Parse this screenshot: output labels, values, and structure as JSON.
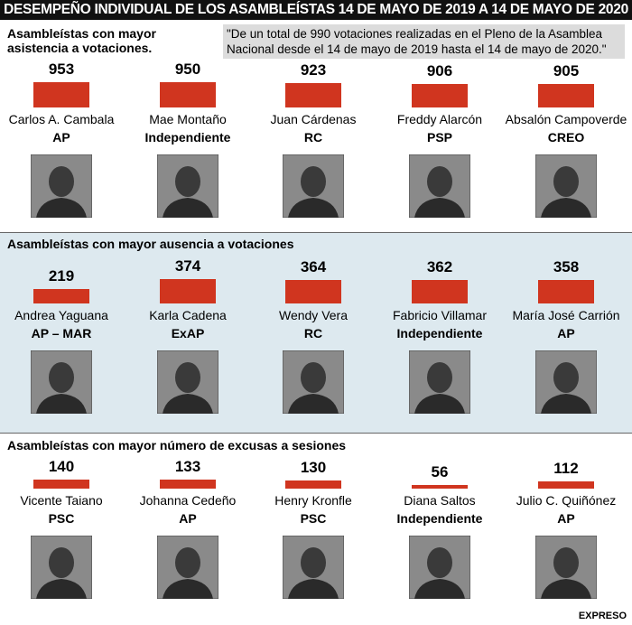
{
  "header": {
    "title": "DESEMPEÑO INDIVIDUAL DE LOS ASAMBLEÍSTAS 14 DE MAYO DE 2019 A 14 DE MAYO DE 2020"
  },
  "note": "\"De un total de 990 votaciones realizadas en el Pleno de la Asamblea Nacional desde el 14 de mayo de 2019 hasta el 14 de mayo de 2020.\"",
  "footer": "EXPRESO",
  "chart_data": [
    {
      "type": "bar",
      "title": "Asambleístas con mayor asistencia a votaciones.",
      "categories": [
        "Carlos A. Cambala",
        "Mae Montaño",
        "Juan Cárdenas",
        "Freddy Alarcón",
        "Absalón Campoverde"
      ],
      "parties": [
        "AP",
        "Independiente",
        "RC",
        "PSP",
        "CREO"
      ],
      "values": [
        953,
        950,
        923,
        906,
        905
      ],
      "color": "#d0351f",
      "ylim": [
        0,
        1000
      ]
    },
    {
      "type": "bar",
      "title": "Asambleístas con mayor ausencia a votaciones",
      "categories": [
        "Andrea Yaguana",
        "Karla Cadena",
        "Wendy Vera",
        "Fabricio Villamar",
        "María José Carrión"
      ],
      "parties": [
        "AP – MAR",
        "ExAP",
        "RC",
        "Independiente",
        "AP"
      ],
      "values": [
        219,
        374,
        364,
        362,
        358
      ],
      "color": "#d0351f",
      "ylim": [
        0,
        400
      ]
    },
    {
      "type": "bar",
      "title": "Asambleístas con mayor número de excusas a sesiones",
      "categories": [
        "Vicente Taiano",
        "Johanna Cedeño",
        "Henry Kronfle",
        "Diana Saltos",
        "Julio C. Quiñónez"
      ],
      "parties": [
        "PSC",
        "AP",
        "PSC",
        "Independiente",
        "AP"
      ],
      "values": [
        140,
        133,
        130,
        56,
        112
      ],
      "color": "#d0351f",
      "ylim": [
        0,
        400
      ]
    }
  ]
}
